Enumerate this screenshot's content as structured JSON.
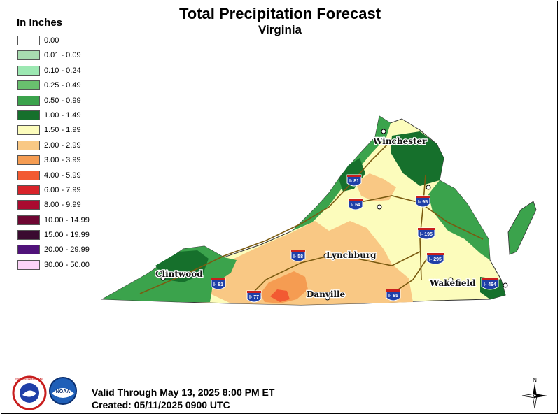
{
  "title": "Total Precipitation Forecast",
  "subtitle": "Virginia",
  "legend": {
    "title": "In Inches",
    "items": [
      {
        "label": "0.00",
        "color": "#ffffff"
      },
      {
        "label": "0.01 - 0.09",
        "color": "#a8dcb0"
      },
      {
        "label": "0.10 - 0.24",
        "color": "#9ce8b2"
      },
      {
        "label": "0.25 - 0.49",
        "color": "#69bf6e"
      },
      {
        "label": "0.50 - 0.99",
        "color": "#3ba34c"
      },
      {
        "label": "1.00 - 1.49",
        "color": "#16702c"
      },
      {
        "label": "1.50 - 1.99",
        "color": "#fcfcbc"
      },
      {
        "label": "2.00 - 2.99",
        "color": "#f9c884"
      },
      {
        "label": "3.00 - 3.99",
        "color": "#f59c52"
      },
      {
        "label": "4.00 - 5.99",
        "color": "#f25a32"
      },
      {
        "label": "6.00 - 7.99",
        "color": "#d8232a"
      },
      {
        "label": "8.00 - 9.99",
        "color": "#aa0a30"
      },
      {
        "label": "10.00 - 14.99",
        "color": "#6e0632"
      },
      {
        "label": "15.00 - 19.99",
        "color": "#3a0a30"
      },
      {
        "label": "20.00 - 29.99",
        "color": "#50127a"
      },
      {
        "label": "30.00 - 50.00",
        "color": "#fcd4f8"
      }
    ]
  },
  "cities": {
    "winchester": "Winchester",
    "lynchburg": "Lynchburg",
    "clintwood": "Clintwood",
    "danville": "Danville",
    "wakefield": "Wakefield"
  },
  "interstates": {
    "i81_north": "I- 81",
    "i64": "I- 64",
    "i95": "I- 95",
    "i195": "I- 195",
    "i58": "I- 58",
    "i295": "I- 295",
    "i81_south": "I- 81",
    "i77": "I- 77",
    "i85": "I- 85",
    "i464": "I- 464"
  },
  "footer": {
    "valid": "Valid Through May 13, 2025 8:00 PM ET",
    "created": "Created: 05/11/2025 0900 UTC"
  },
  "logos": {
    "nws_ring": "NATIONAL WEATHER SERVICE",
    "noaa": "NOAA"
  },
  "compass": {
    "north": "N"
  }
}
